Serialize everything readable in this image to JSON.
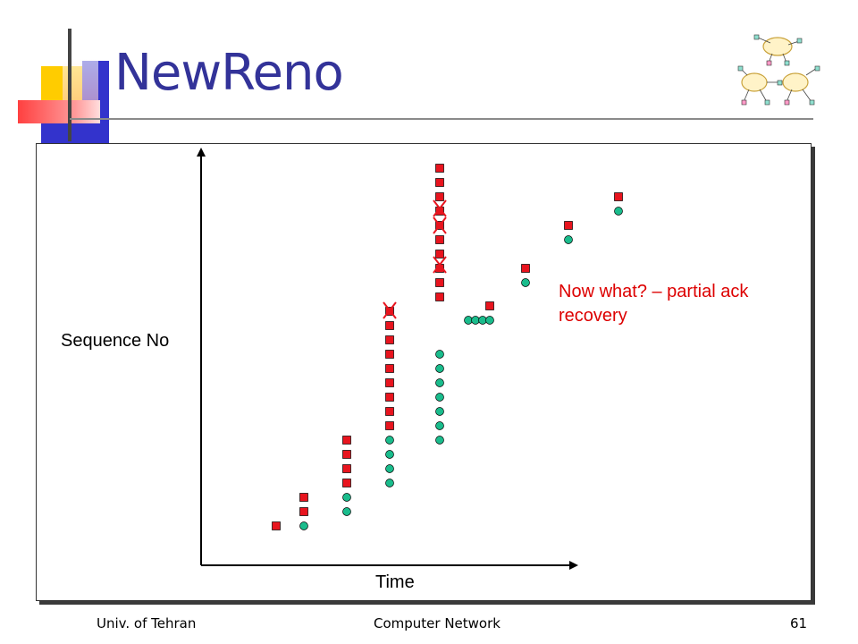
{
  "slide": {
    "title": "NewReno",
    "footer_left": "Univ. of Tehran",
    "footer_center": "Computer Network",
    "footer_right": "61"
  },
  "chart_data": {
    "type": "scatter",
    "title": "",
    "xlabel": "Time",
    "ylabel": "Sequence No",
    "annotation": "Now what? – partial ack recovery",
    "series": [
      {
        "marker": "square",
        "color": "#e8141e",
        "points": [
          [
            1,
            1
          ],
          [
            2,
            2
          ],
          [
            2,
            3
          ],
          [
            3,
            4
          ],
          [
            3,
            5
          ],
          [
            3,
            6
          ],
          [
            3,
            7
          ],
          [
            4,
            8
          ],
          [
            4,
            9
          ],
          [
            4,
            10
          ],
          [
            4,
            11
          ],
          [
            4,
            12
          ],
          [
            4,
            13
          ],
          [
            4,
            14
          ],
          [
            4,
            15
          ],
          [
            4,
            16
          ],
          [
            5,
            17
          ],
          [
            5,
            18
          ],
          [
            5,
            19
          ],
          [
            5,
            20
          ],
          [
            5,
            21
          ],
          [
            5,
            22
          ],
          [
            5,
            23
          ],
          [
            5,
            24
          ],
          [
            5,
            25
          ],
          [
            5,
            26
          ],
          [
            6,
            16
          ],
          [
            7,
            17
          ],
          [
            8,
            20
          ],
          [
            9,
            21
          ]
        ]
      },
      {
        "marker": "circle",
        "color": "#1abc8c",
        "points": [
          [
            2,
            1
          ],
          [
            3,
            2
          ],
          [
            3,
            3
          ],
          [
            4,
            4
          ],
          [
            4,
            5
          ],
          [
            4,
            6
          ],
          [
            4,
            7
          ],
          [
            5,
            7
          ],
          [
            5,
            8
          ],
          [
            5,
            9
          ],
          [
            5,
            10
          ],
          [
            5,
            11
          ],
          [
            5,
            12
          ],
          [
            5,
            13
          ],
          [
            6,
            14
          ],
          [
            6.1,
            14
          ],
          [
            6.2,
            14
          ],
          [
            6.3,
            14
          ],
          [
            7,
            15
          ],
          [
            8,
            19
          ],
          [
            9,
            20
          ]
        ]
      }
    ],
    "losses": [
      [
        4,
        17
      ],
      [
        5,
        21.5
      ],
      [
        5,
        22.5
      ],
      [
        5,
        19
      ]
    ],
    "grid": false,
    "legend": "none"
  },
  "colors": {
    "title": "#333399",
    "annotation": "#dd0000",
    "packet": "#e8141e",
    "ack": "#1abc8c"
  },
  "icons": [
    "network-cloud-icon"
  ]
}
